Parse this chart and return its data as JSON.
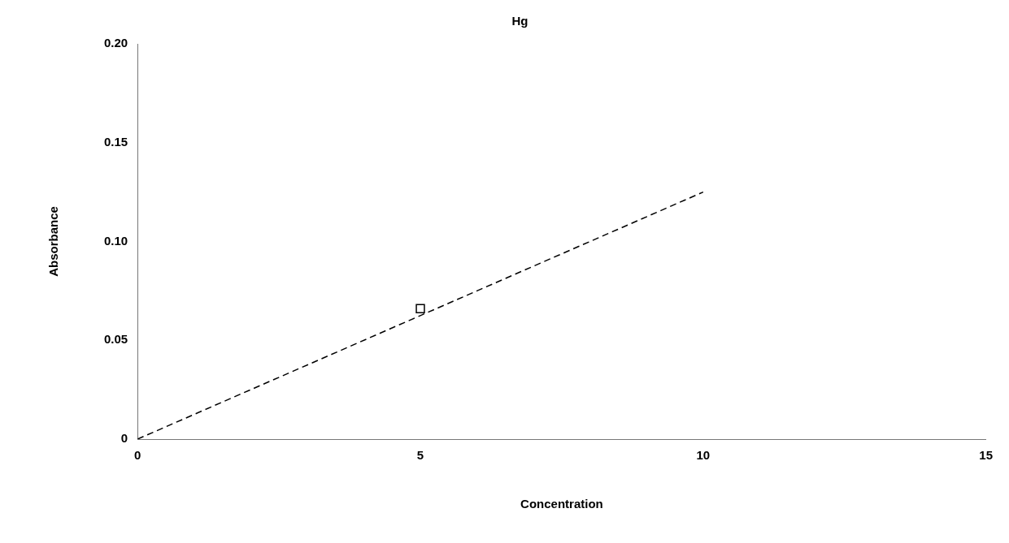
{
  "chart_data": {
    "type": "line",
    "title": "Hg",
    "xlabel": "Concentration",
    "ylabel": "Absorbance",
    "xlim": [
      0,
      15
    ],
    "xticks": [
      0,
      5,
      10,
      15
    ],
    "ylim": [
      0,
      0.2
    ],
    "yticks": [
      0,
      0.05,
      {
        "value": 0.1,
        "label": "0.10"
      },
      0.15,
      {
        "value": 0.2,
        "label": "0.20"
      }
    ],
    "grid": false,
    "legend": false,
    "series": [
      {
        "color": "#000000",
        "x": [
          0,
          10
        ],
        "values": [
          0,
          0.125
        ],
        "marker": "none",
        "line_style": "dashed"
      },
      {
        "type": "scatter",
        "color": "#000000",
        "x": [
          5
        ],
        "values": [
          0.066
        ],
        "marker": "square"
      }
    ]
  }
}
